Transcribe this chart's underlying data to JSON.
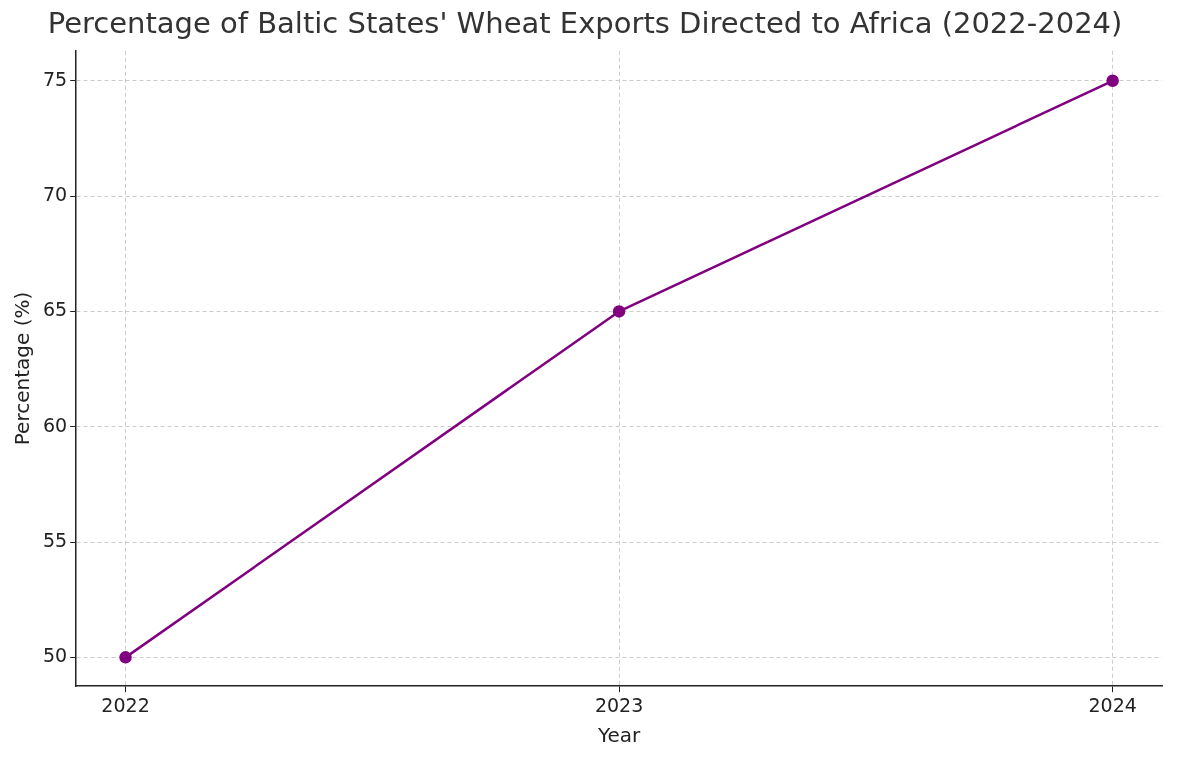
{
  "chart_data": {
    "type": "line",
    "title": "Percentage of Baltic States' Wheat Exports Directed to Africa (2022-2024)",
    "xlabel": "Year",
    "ylabel": "Percentage (%)",
    "x": [
      2022,
      2023,
      2024
    ],
    "series": [
      {
        "color": "#800080",
        "values": [
          50,
          65,
          75
        ]
      }
    ],
    "xlim": [
      2021.9,
      2024.1
    ],
    "xticks": [
      2022,
      2023,
      2024
    ],
    "ylim": [
      48.75,
      76.3
    ],
    "yticks": [
      50,
      55,
      60,
      65,
      70,
      75
    ],
    "grid": true,
    "marker": "circle",
    "line_style": "solid",
    "legend": false
  }
}
